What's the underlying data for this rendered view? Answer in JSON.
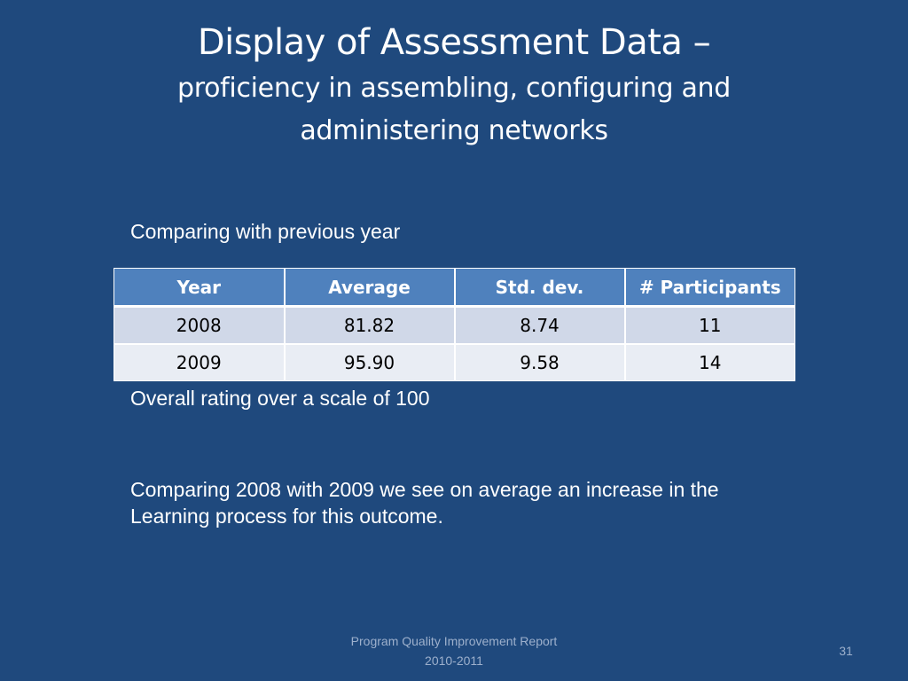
{
  "title": {
    "main": "Display of Assessment Data –",
    "sub_line1": "proficiency in assembling, configuring and",
    "sub_line2": "administering networks"
  },
  "intro_text": "Comparing with previous year",
  "table": {
    "headers": [
      "Year",
      "Average",
      "Std. dev.",
      "# Participants"
    ],
    "rows": [
      [
        "2008",
        "81.82",
        "8.74",
        "11"
      ],
      [
        "2009",
        "95.90",
        "9.58",
        "14"
      ]
    ]
  },
  "scale_note": "Overall rating over a scale of 100",
  "conclusion": {
    "line1": "Comparing 2008 with 2009 we see on average an increase in the",
    "line2": "Learning process for this outcome."
  },
  "footer": {
    "line1": "Program Quality Improvement Report",
    "line2": "2010-2011"
  },
  "page_number": "31",
  "colors": {
    "background": "#1f497d",
    "table_header": "#4f81bd",
    "table_row_odd": "#d0d8e8",
    "table_row_even": "#e9edf4"
  }
}
